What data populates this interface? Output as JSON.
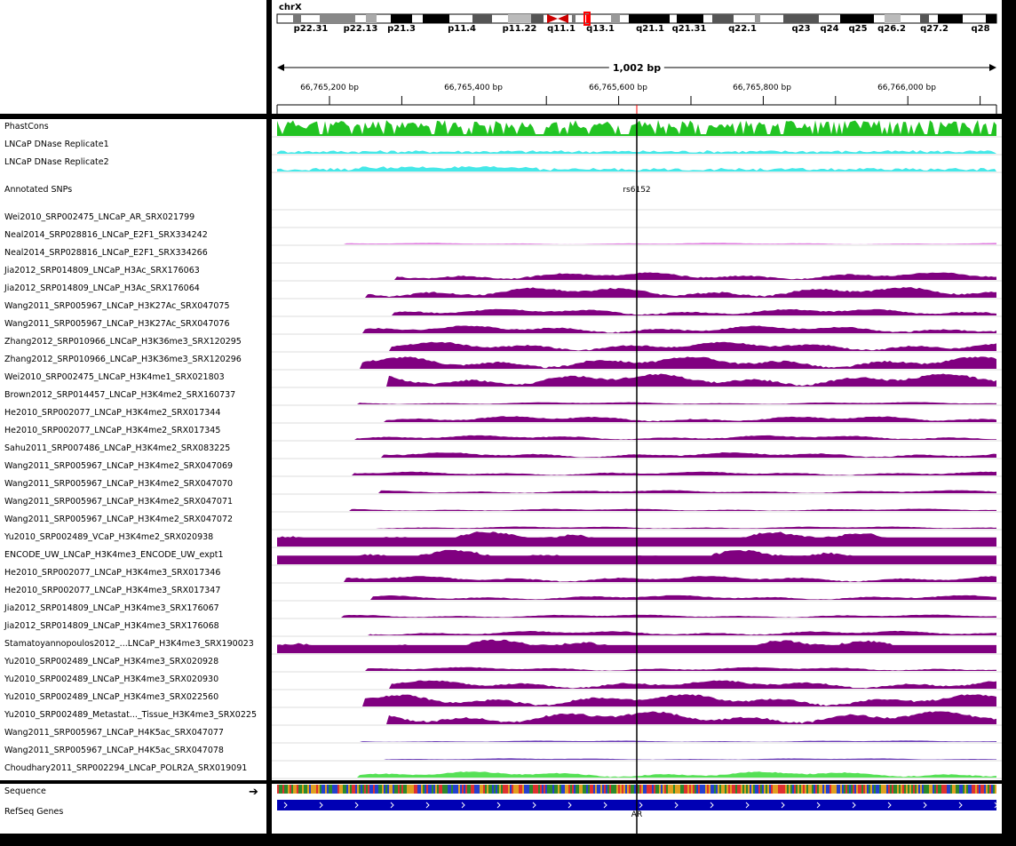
{
  "ideogram": {
    "chromosome": "chrX",
    "bands": [
      "p22.31",
      "p22.13",
      "p21.3",
      "p11.4",
      "p11.22",
      "q11.1",
      "q13.1",
      "q21.1",
      "q21.31",
      "q22.1",
      "q23",
      "q24",
      "q25",
      "q26.2",
      "q27.2",
      "q28"
    ]
  },
  "ruler": {
    "span": "1,002 bp",
    "ticks": [
      "66,765,200 bp",
      "66,765,400 bp",
      "66,765,600 bp",
      "66,765,800 bp",
      "66,766,000 bp"
    ]
  },
  "tracks": [
    {
      "name": "PhastCons",
      "type": "phastcons",
      "color": "#22c322"
    },
    {
      "name": "LNCaP DNase Replicate1",
      "type": "dnase",
      "color": "#45e8e8"
    },
    {
      "name": "LNCaP DNase Replicate2",
      "type": "dnase",
      "color": "#45e8e8"
    },
    {
      "name": "Annotated SNPs",
      "type": "snp",
      "snp_label": "rs6152"
    },
    {
      "name": "Wei2010_SRP002475_LNCaP_AR_SRX021799",
      "type": "signal",
      "amp": 0
    },
    {
      "name": "Neal2014_SRP028816_LNCaP_E2F1_SRX334242",
      "type": "signal",
      "amp": 0.1,
      "color": "#e07ae0"
    },
    {
      "name": "Neal2014_SRP028816_LNCaP_E2F1_SRX334266",
      "type": "signal",
      "amp": 0
    },
    {
      "name": "Jia2012_SRP014809_LNCaP_H3Ac_SRX176063",
      "type": "signal",
      "amp": 0.5
    },
    {
      "name": "Jia2012_SRP014809_LNCaP_H3Ac_SRX176064",
      "type": "signal",
      "amp": 0.7
    },
    {
      "name": "Wang2011_SRP005967_LNCaP_H3K27Ac_SRX047075",
      "type": "signal",
      "amp": 0.45
    },
    {
      "name": "Wang2011_SRP005967_LNCaP_H3K27Ac_SRX047076",
      "type": "signal",
      "amp": 0.5
    },
    {
      "name": "Zhang2012_SRP010966_LNCaP_H3K36me3_SRX120295",
      "type": "signal",
      "amp": 0.6
    },
    {
      "name": "Zhang2012_SRP010966_LNCaP_H3K36me3_SRX120296",
      "type": "signal",
      "amp": 0.8
    },
    {
      "name": "Wei2010_SRP002475_LNCaP_H3K4me1_SRX021803",
      "type": "signal",
      "amp": 0.85
    },
    {
      "name": "Brown2012_SRP014457_LNCaP_H3K4me2_SRX160737",
      "type": "signal",
      "amp": 0.15
    },
    {
      "name": "He2010_SRP002077_LNCaP_H3K4me2_SRX017344",
      "type": "signal",
      "amp": 0.4
    },
    {
      "name": "He2010_SRP002077_LNCaP_H3K4me2_SRX017345",
      "type": "signal",
      "amp": 0.3
    },
    {
      "name": "Sahu2011_SRP007486_LNCaP_H3K4me2_SRX083225",
      "type": "signal",
      "amp": 0.35
    },
    {
      "name": "Wang2011_SRP005967_LNCaP_H3K4me2_SRX047069",
      "type": "signal",
      "amp": 0.25
    },
    {
      "name": "Wang2011_SRP005967_LNCaP_H3K4me2_SRX047070",
      "type": "signal",
      "amp": 0.2
    },
    {
      "name": "Wang2011_SRP005967_LNCaP_H3K4me2_SRX047071",
      "type": "signal",
      "amp": 0.15
    },
    {
      "name": "Wang2011_SRP005967_LNCaP_H3K4me2_SRX047072",
      "type": "signal",
      "amp": 0.15
    },
    {
      "name": "Yu2010_SRP002489_VCaP_H3K4me2_SRX020938",
      "type": "signal",
      "amp": 1.0,
      "full": true
    },
    {
      "name": "ENCODE_UW_LNCaP_H3K4me3_ENCODE_UW_expt1",
      "type": "signal",
      "amp": 0.95,
      "full": true
    },
    {
      "name": "He2010_SRP002077_LNCaP_H3K4me3_SRX017346",
      "type": "signal",
      "amp": 0.4
    },
    {
      "name": "He2010_SRP002077_LNCaP_H3K4me3_SRX017347",
      "type": "signal",
      "amp": 0.3
    },
    {
      "name": "Jia2012_SRP014809_LNCaP_H3K4me3_SRX176067",
      "type": "signal",
      "amp": 0.2
    },
    {
      "name": "Jia2012_SRP014809_LNCaP_H3K4me3_SRX176068",
      "type": "signal",
      "amp": 0.3
    },
    {
      "name": "Stamatoyannopoulos2012_...LNCaP_H3K4me3_SRX190023",
      "type": "signal",
      "amp": 0.9,
      "full": true
    },
    {
      "name": "Yu2010_SRP002489_LNCaP_H3K4me3_SRX020928",
      "type": "signal",
      "amp": 0.25
    },
    {
      "name": "Yu2010_SRP002489_LNCaP_H3K4me3_SRX020930",
      "type": "signal",
      "amp": 0.55
    },
    {
      "name": "Yu2010_SRP002489_LNCaP_H3K4me3_SRX022560",
      "type": "signal",
      "amp": 0.8
    },
    {
      "name": "Yu2010_SRP002489_Metastat..._Tissue_H3K4me3_SRX0225",
      "type": "signal",
      "amp": 0.85
    },
    {
      "name": "Wang2011_SRP005967_LNCaP_H4K5ac_SRX047077",
      "type": "signal",
      "amp": 0.1,
      "color": "#6a3ab8"
    },
    {
      "name": "Wang2011_SRP005967_LNCaP_H4K5ac_SRX047078",
      "type": "signal",
      "amp": 0.1,
      "color": "#6a3ab8"
    },
    {
      "name": "Choudhary2011_SRP002294_LNCaP_POLR2A_SRX019091",
      "type": "signal",
      "amp": 0.4,
      "color": "#55e055"
    }
  ],
  "features": {
    "sequence_label": "Sequence",
    "refseq_label": "RefSeq Genes",
    "gene_name": "AR",
    "strand_icon": "right-arrow-icon",
    "gene_color": "#0000b4"
  },
  "colors": {
    "signal": "#800080",
    "cursor": "#000000",
    "center_marker": "#ff0000"
  }
}
